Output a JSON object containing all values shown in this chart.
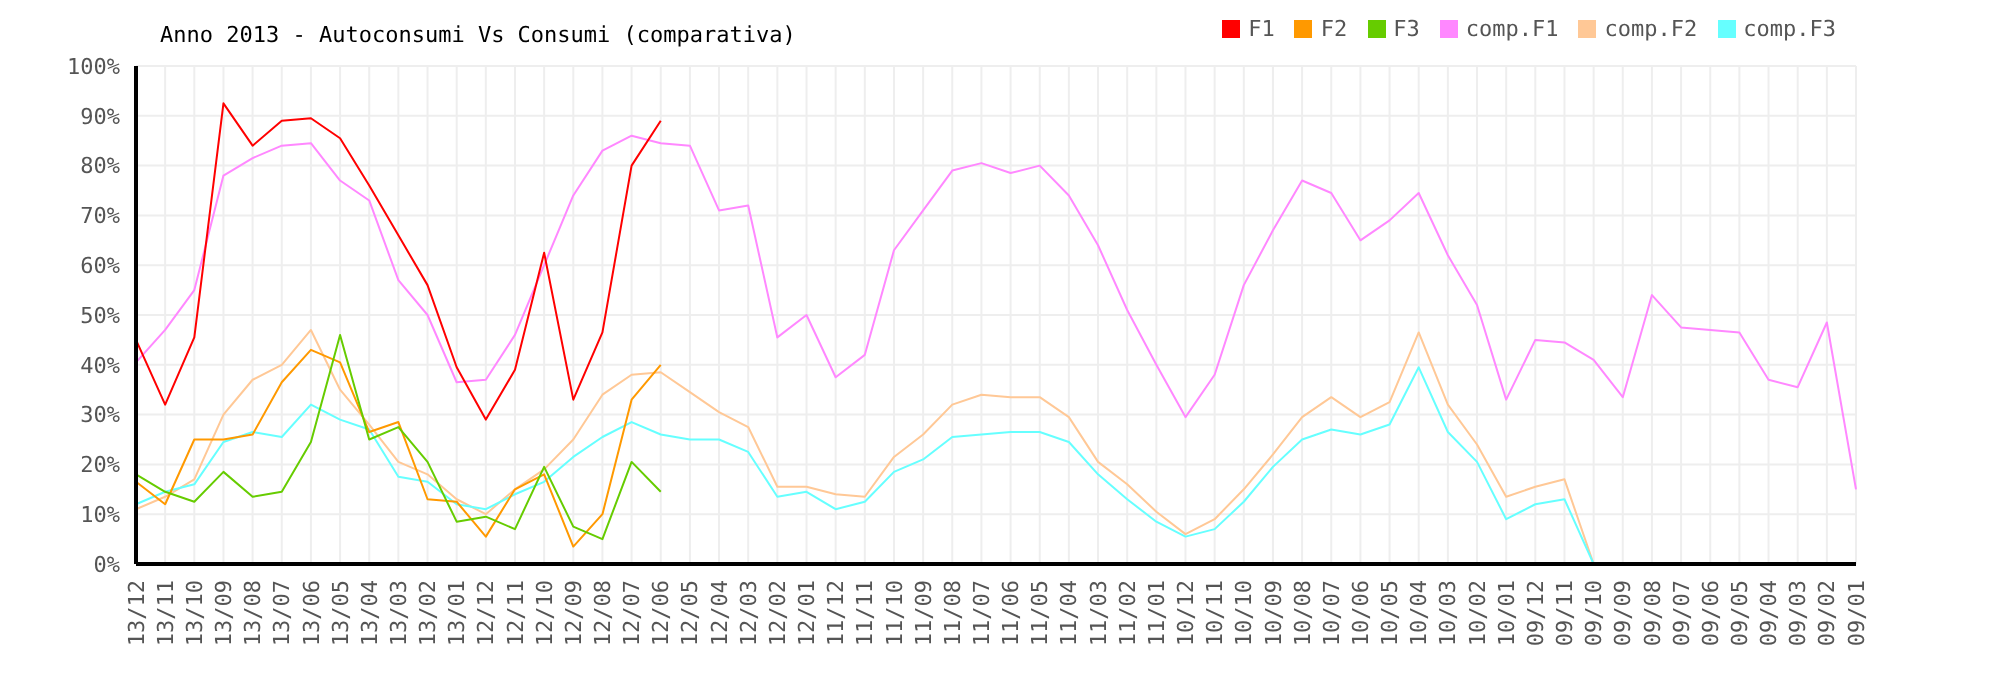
{
  "chart_data": {
    "type": "line",
    "title": "Anno 2013 - Autoconsumi Vs Consumi (comparativa)",
    "categories": [
      "13/12",
      "13/11",
      "13/10",
      "13/09",
      "13/08",
      "13/07",
      "13/06",
      "13/05",
      "13/04",
      "13/03",
      "13/02",
      "13/01",
      "12/12",
      "12/11",
      "12/10",
      "12/09",
      "12/08",
      "12/07",
      "12/06",
      "12/05",
      "12/04",
      "12/03",
      "12/02",
      "12/01",
      "11/12",
      "11/11",
      "11/10",
      "11/09",
      "11/08",
      "11/07",
      "11/06",
      "11/05",
      "11/04",
      "11/03",
      "11/02",
      "11/01",
      "10/12",
      "10/11",
      "10/10",
      "10/09",
      "10/08",
      "10/07",
      "10/06",
      "10/05",
      "10/04",
      "10/03",
      "10/02",
      "10/01",
      "09/12",
      "09/11",
      "09/10",
      "09/09",
      "09/08",
      "09/07",
      "09/06",
      "09/05",
      "09/04",
      "09/03",
      "09/02",
      "09/01"
    ],
    "series": [
      {
        "name": "comp.F1",
        "color": "#ff88ff",
        "values": [
          40.5,
          47,
          55,
          78,
          81.5,
          84,
          84.5,
          77,
          73,
          57,
          50,
          36.5,
          37,
          46,
          60,
          74,
          83,
          86,
          84.5,
          84,
          71,
          72,
          45.5,
          50,
          37.5,
          42,
          63,
          71,
          79,
          80.5,
          78.5,
          80,
          74,
          64,
          51,
          40,
          29.5,
          38,
          56,
          67,
          77,
          74.5,
          65,
          69,
          74.5,
          62,
          52,
          33,
          45,
          44.5,
          41,
          33.5,
          54,
          47.5,
          47,
          46.5,
          37,
          35.5,
          48.5,
          15
        ]
      },
      {
        "name": "comp.F2",
        "color": "#ffc896",
        "values": [
          11,
          13.5,
          17,
          30,
          37,
          40,
          47,
          35,
          28,
          20.5,
          18,
          13,
          10,
          15,
          19,
          25,
          34,
          38,
          38.5,
          34.5,
          30.5,
          27.5,
          15.5,
          15.5,
          14,
          13.5,
          21.5,
          26,
          32,
          34,
          33.5,
          33.5,
          29.5,
          20.5,
          16,
          10.5,
          6,
          9,
          15,
          22,
          29.5,
          33.5,
          29.5,
          32.5,
          46.5,
          32,
          24,
          13.5,
          15.5,
          17,
          0,
          null,
          null,
          null,
          null,
          null,
          null,
          null,
          null,
          null
        ]
      },
      {
        "name": "comp.F3",
        "color": "#66ffff",
        "values": [
          12,
          14.5,
          16,
          24.5,
          26.5,
          25.5,
          32,
          29,
          27,
          17.5,
          16.5,
          12,
          11,
          14,
          16.5,
          21.5,
          25.5,
          28.5,
          26,
          25,
          25,
          22.5,
          13.5,
          14.5,
          11,
          12.5,
          18.5,
          21,
          25.5,
          26,
          26.5,
          26.5,
          24.5,
          18,
          13,
          8.5,
          5.5,
          7,
          12.5,
          19.5,
          25,
          27,
          26,
          28,
          39.5,
          26.5,
          20.5,
          9,
          12,
          13,
          0,
          null,
          null,
          null,
          null,
          null,
          null,
          null,
          null,
          null
        ]
      },
      {
        "name": "F1",
        "color": "#ff0000",
        "values": [
          45,
          32,
          45.5,
          92.5,
          84,
          89,
          89.5,
          85.5,
          76,
          66,
          56,
          39.5,
          29,
          39,
          62.5,
          33,
          46.5,
          80,
          89,
          null,
          null,
          null,
          null,
          null,
          null,
          null,
          null,
          null,
          null,
          null,
          null,
          null,
          null,
          null,
          null,
          null,
          null,
          null,
          null,
          null,
          null,
          null,
          null,
          null,
          null,
          null,
          null,
          null,
          null,
          null,
          null,
          null,
          null,
          null,
          null,
          null,
          null,
          null,
          null,
          null
        ]
      },
      {
        "name": "F2",
        "color": "#ff9900",
        "values": [
          16.5,
          12,
          25,
          25,
          26,
          36.5,
          43,
          40.5,
          26.5,
          28.5,
          13,
          12.5,
          5.5,
          15,
          18,
          3.5,
          10,
          33,
          40,
          null,
          null,
          null,
          null,
          null,
          null,
          null,
          null,
          null,
          null,
          null,
          null,
          null,
          null,
          null,
          null,
          null,
          null,
          null,
          null,
          null,
          null,
          null,
          null,
          null,
          null,
          null,
          null,
          null,
          null,
          null,
          null,
          null,
          null,
          null,
          null,
          null,
          null,
          null,
          null,
          null
        ]
      },
      {
        "name": "F3",
        "color": "#66cc00",
        "values": [
          18,
          14.5,
          12.5,
          18.5,
          13.5,
          14.5,
          24.5,
          46,
          25,
          27.5,
          20.5,
          8.5,
          9.5,
          7,
          19.5,
          7.5,
          5,
          20.5,
          14.5,
          null,
          null,
          null,
          null,
          null,
          null,
          null,
          null,
          null,
          null,
          null,
          null,
          null,
          null,
          null,
          null,
          null,
          null,
          null,
          null,
          null,
          null,
          null,
          null,
          null,
          null,
          null,
          null,
          null,
          null,
          null,
          null,
          null,
          null,
          null,
          null,
          null,
          null,
          null,
          null,
          null
        ]
      }
    ],
    "ylim": [
      0,
      100
    ],
    "yticks": [
      {
        "value": 0,
        "label": "0%"
      },
      {
        "value": 10,
        "label": "10%"
      },
      {
        "value": 20,
        "label": "20%"
      },
      {
        "value": 30,
        "label": "30%"
      },
      {
        "value": 40,
        "label": "40%"
      },
      {
        "value": 50,
        "label": "50%"
      },
      {
        "value": 60,
        "label": "60%"
      },
      {
        "value": 70,
        "label": "70%"
      },
      {
        "value": 80,
        "label": "80%"
      },
      {
        "value": 90,
        "label": "90%"
      },
      {
        "value": 100,
        "label": "100%"
      }
    ],
    "grid": true,
    "legend": "top right",
    "marker": "none",
    "line_style": "solid"
  }
}
